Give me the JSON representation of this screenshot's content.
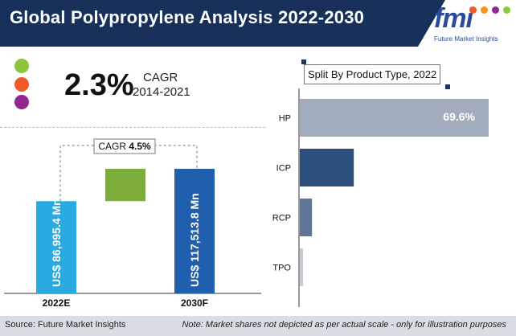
{
  "header": {
    "title": "Global Polypropylene Analysis 2022-2030"
  },
  "logo": {
    "text": "fmi",
    "subtitle": "Future Market Insights"
  },
  "summary": {
    "cagr_value": "2.3%",
    "cagr_label": "CAGR",
    "cagr_period": "2014-2021",
    "dot_colors": [
      "#8cc63f",
      "#f15a29",
      "#92278f"
    ]
  },
  "colors": {
    "header_bg": "#16305a",
    "left_bar": "#29abe2",
    "right_bar": "#1f5fae",
    "growth_box": "#7cac3a",
    "hp": "#a3acbd",
    "icp": "#2b4e7c",
    "rcp": "#5f7597",
    "tpo": "#c5cad3"
  },
  "chart_data": [
    {
      "type": "bar",
      "categories": [
        "2022E",
        "2030F"
      ],
      "values": [
        86995.4,
        117513.8
      ],
      "value_labels": [
        "US$ 86,995.4 Mn",
        "US$ 117,513.8 Mn"
      ],
      "annotation": {
        "label": "CAGR",
        "value": "4.5%"
      }
    },
    {
      "type": "bar",
      "orientation": "horizontal",
      "title": "Split By Product  Type, 2022",
      "categories": [
        "HP",
        "ICP",
        "RCP",
        "TPO"
      ],
      "values": [
        69.6,
        19.9,
        4.5,
        1.0
      ],
      "value_labels": [
        "69.6%",
        "",
        "",
        ""
      ]
    }
  ],
  "footer": {
    "source": "Source: Future Market Insights",
    "note": "Note: Market shares not depicted as per actual scale - only for illustration purposes"
  }
}
